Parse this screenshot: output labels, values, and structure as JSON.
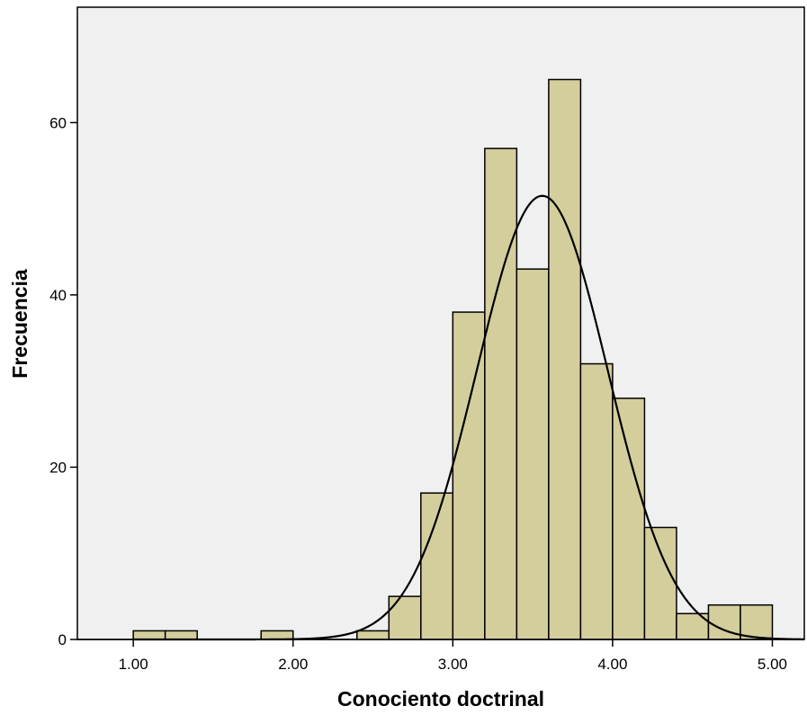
{
  "chart_data": {
    "type": "bar",
    "subtype": "histogram",
    "xlabel": "Conociento doctrinal",
    "ylabel": "Frecuencia",
    "bin_width": 0.2,
    "bins": [
      {
        "start": 1.0,
        "end": 1.2,
        "count": 1
      },
      {
        "start": 1.2,
        "end": 1.4,
        "count": 1
      },
      {
        "start": 1.4,
        "end": 1.6,
        "count": 0
      },
      {
        "start": 1.6,
        "end": 1.8,
        "count": 0
      },
      {
        "start": 1.8,
        "end": 2.0,
        "count": 1
      },
      {
        "start": 2.0,
        "end": 2.2,
        "count": 0
      },
      {
        "start": 2.2,
        "end": 2.4,
        "count": 0
      },
      {
        "start": 2.4,
        "end": 2.6,
        "count": 1
      },
      {
        "start": 2.6,
        "end": 2.8,
        "count": 5
      },
      {
        "start": 2.8,
        "end": 3.0,
        "count": 17
      },
      {
        "start": 3.0,
        "end": 3.2,
        "count": 38
      },
      {
        "start": 3.2,
        "end": 3.4,
        "count": 57
      },
      {
        "start": 3.4,
        "end": 3.6,
        "count": 43
      },
      {
        "start": 3.6,
        "end": 3.8,
        "count": 65
      },
      {
        "start": 3.8,
        "end": 4.0,
        "count": 32
      },
      {
        "start": 4.0,
        "end": 4.2,
        "count": 28
      },
      {
        "start": 4.2,
        "end": 4.4,
        "count": 13
      },
      {
        "start": 4.4,
        "end": 4.6,
        "count": 3
      },
      {
        "start": 4.6,
        "end": 4.8,
        "count": 4
      },
      {
        "start": 4.8,
        "end": 5.0,
        "count": 4
      }
    ],
    "normal_curve": {
      "mean": 3.56,
      "sd": 0.41,
      "peak": 51.5
    },
    "xticks": [
      "1.00",
      "2.00",
      "3.00",
      "4.00",
      "5.00"
    ],
    "xtick_values": [
      1,
      2,
      3,
      4,
      5
    ],
    "yticks": [
      "0",
      "20",
      "40",
      "60"
    ],
    "ytick_values": [
      0,
      20,
      40,
      60
    ],
    "xlim": [
      0.65,
      5.2
    ],
    "ylim": [
      0,
      73.4
    ],
    "grid": false,
    "colors": {
      "plot_background": "#f0f0f0",
      "bar_fill": "#d3ce9c",
      "bar_stroke": "#000000",
      "curve": "#000000"
    }
  }
}
